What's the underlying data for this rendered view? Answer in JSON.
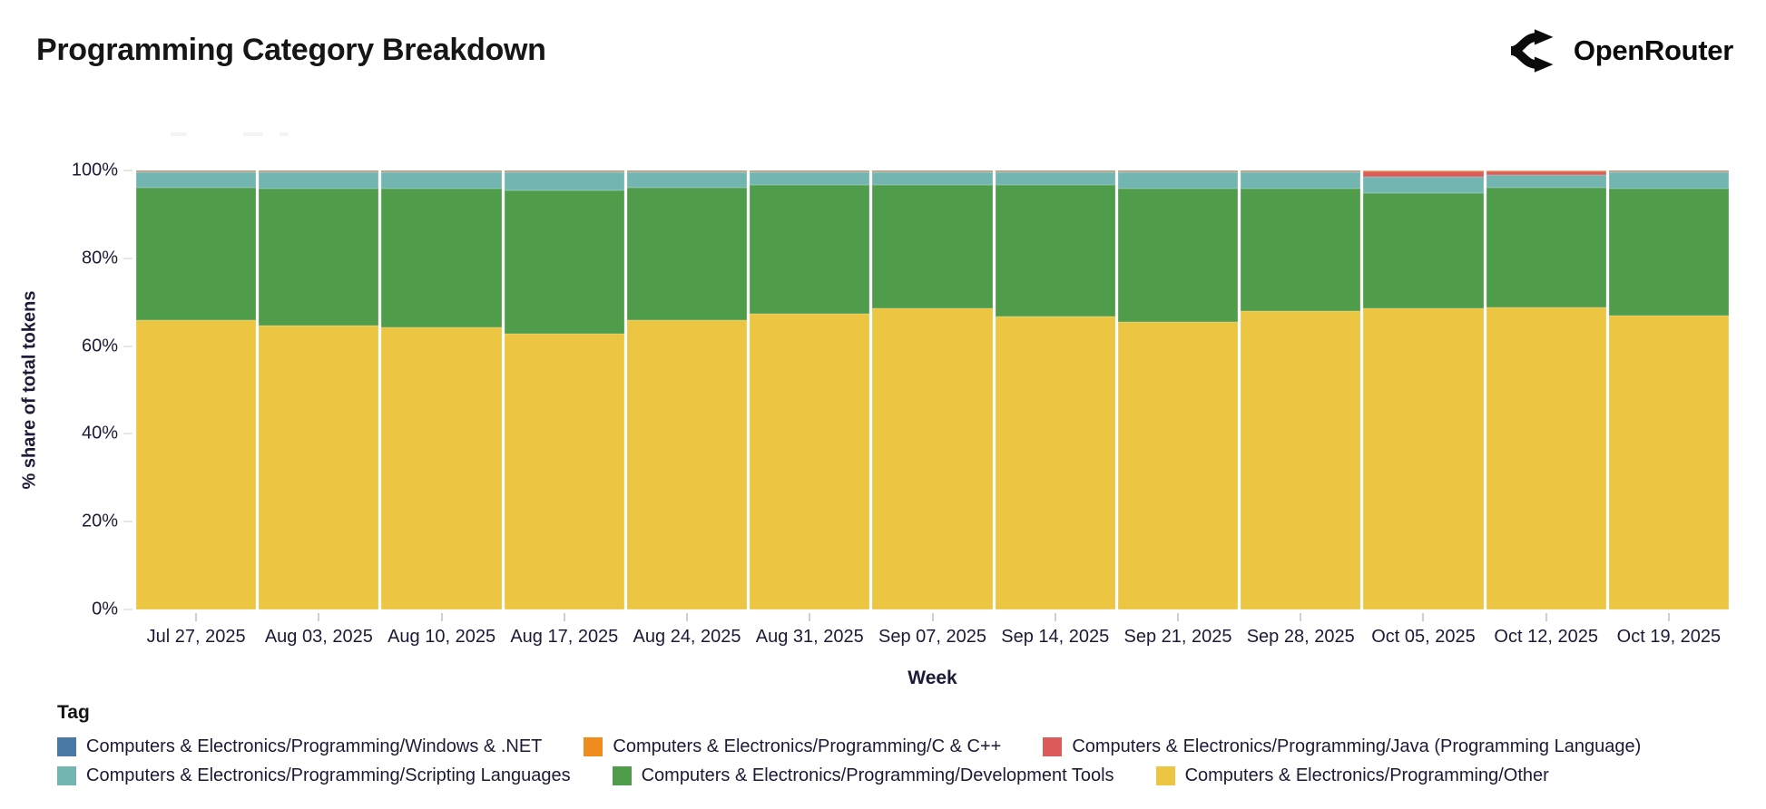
{
  "header": {
    "title": "Programming Category Breakdown",
    "brand": "OpenRouter"
  },
  "chart_data": {
    "type": "bar",
    "stacked": true,
    "stack_order": "bottom-to-top",
    "title": "Programming Category Breakdown",
    "xlabel": "Week",
    "ylabel": "% share of total tokens",
    "ylim": [
      0,
      100
    ],
    "yticks": [
      "0%",
      "20%",
      "40%",
      "60%",
      "80%",
      "100%"
    ],
    "grid": false,
    "categories": [
      "Jul 27, 2025",
      "Aug 03, 2025",
      "Aug 10, 2025",
      "Aug 17, 2025",
      "Aug 24, 2025",
      "Aug 31, 2025",
      "Sep 07, 2025",
      "Sep 14, 2025",
      "Sep 21, 2025",
      "Sep 28, 2025",
      "Oct 05, 2025",
      "Oct 12, 2025",
      "Oct 19, 2025"
    ],
    "series": [
      {
        "name": "Computers & Electronics/Programming/Other",
        "color": "#ecc542",
        "values": [
          66.0,
          64.7,
          64.3,
          62.8,
          65.9,
          67.4,
          68.6,
          66.7,
          65.5,
          68.0,
          68.6,
          68.8,
          66.9
        ]
      },
      {
        "name": "Computers & Electronics/Programming/Development Tools",
        "color": "#4f9d4b",
        "values": [
          30.1,
          31.2,
          31.5,
          32.7,
          30.2,
          29.2,
          28.0,
          29.9,
          30.3,
          27.9,
          26.2,
          27.3,
          28.9
        ]
      },
      {
        "name": "Computers & Electronics/Programming/Scripting Languages",
        "color": "#73b5b1",
        "values": [
          3.4,
          3.6,
          3.7,
          4.0,
          3.4,
          2.9,
          2.9,
          2.9,
          3.7,
          3.6,
          3.8,
          2.9,
          3.7
        ]
      },
      {
        "name": "Computers & Electronics/Programming/Java (Programming Language)",
        "color": "#dc5c5c",
        "values": [
          0.0,
          0.0,
          0.0,
          0.0,
          0.0,
          0.0,
          0.0,
          0.0,
          0.0,
          0.0,
          1.3,
          0.9,
          0.0
        ]
      },
      {
        "name": "Computers & Electronics/Programming/C & C++",
        "color": "#f08c1e",
        "values": [
          0.4,
          0.4,
          0.4,
          0.4,
          0.4,
          0.4,
          0.4,
          0.4,
          0.4,
          0.4,
          0.05,
          0.05,
          0.4
        ]
      },
      {
        "name": "Computers & Electronics/Programming/Windows & .NET",
        "color": "#4a79a8",
        "values": [
          0.1,
          0.1,
          0.1,
          0.1,
          0.1,
          0.1,
          0.1,
          0.1,
          0.1,
          0.1,
          0.05,
          0.05,
          0.1
        ]
      }
    ],
    "legend_position": "bottom-left"
  },
  "legend": {
    "title": "Tag",
    "rows": [
      [
        {
          "label": "Computers & Electronics/Programming/Windows & .NET",
          "color": "#4a79a8"
        },
        {
          "label": "Computers & Electronics/Programming/C & C++",
          "color": "#f08c1e"
        },
        {
          "label": "Computers & Electronics/Programming/Java (Programming Language)",
          "color": "#dc5c5c"
        }
      ],
      [
        {
          "label": "Computers & Electronics/Programming/Scripting Languages",
          "color": "#73b5b1"
        },
        {
          "label": "Computers & Electronics/Programming/Development Tools",
          "color": "#4f9d4b"
        },
        {
          "label": "Computers & Electronics/Programming/Other",
          "color": "#ecc542"
        }
      ]
    ]
  }
}
